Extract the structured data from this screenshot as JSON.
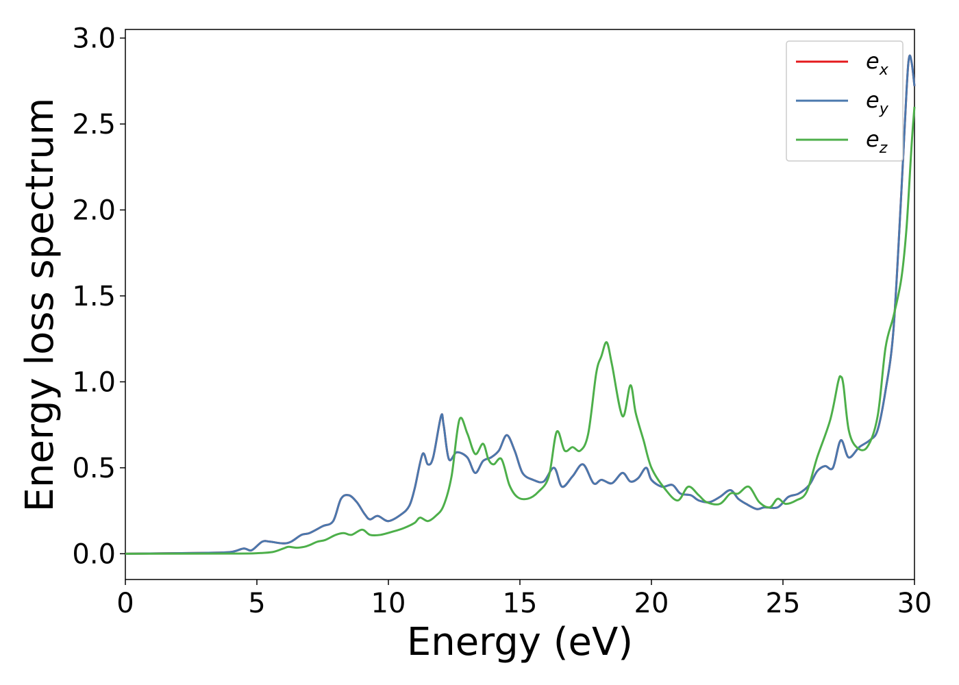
{
  "chart_data": {
    "type": "line",
    "xlabel": "Energy (eV)",
    "ylabel": "Energy loss spectrum",
    "xlim": [
      0,
      30
    ],
    "ylim": [
      -0.15,
      3.05
    ],
    "xticks": [
      0,
      5,
      10,
      15,
      20,
      25,
      30
    ],
    "yticks": [
      0.0,
      0.5,
      1.0,
      1.5,
      2.0,
      2.5,
      3.0
    ],
    "xtick_labels": [
      "0",
      "5",
      "10",
      "15",
      "20",
      "25",
      "30"
    ],
    "ytick_labels": [
      "0.0",
      "0.5",
      "1.0",
      "1.5",
      "2.0",
      "2.5",
      "3.0"
    ],
    "grid": false,
    "legend_position": "top-right",
    "series": [
      {
        "name": "e",
        "subscript": "x",
        "color": "#e41a1c",
        "x": [
          0,
          3,
          4,
          4.5,
          4.8,
          5.2,
          5.5,
          6.0,
          6.3,
          6.7,
          7.0,
          7.5,
          7.9,
          8.2,
          8.5,
          8.8,
          9.1,
          9.3,
          9.6,
          10.0,
          10.5,
          10.8,
          11.0,
          11.3,
          11.5,
          11.7,
          12.0,
          12.1,
          12.3,
          12.6,
          13.0,
          13.3,
          13.6,
          13.9,
          14.2,
          14.5,
          14.8,
          15.1,
          15.5,
          15.9,
          16.3,
          16.6,
          17.0,
          17.4,
          17.8,
          18.1,
          18.5,
          18.9,
          19.2,
          19.5,
          19.8,
          20.0,
          20.4,
          20.8,
          21.1,
          21.5,
          21.8,
          22.2,
          22.6,
          23.0,
          23.3,
          23.6,
          24.0,
          24.3,
          24.8,
          25.2,
          25.6,
          26.0,
          26.3,
          26.6,
          26.9,
          27.2,
          27.5,
          27.9,
          28.3,
          28.6,
          28.9,
          29.2,
          29.5,
          29.7,
          29.8,
          29.9,
          30.0
        ],
        "y": [
          0,
          0.005,
          0.01,
          0.03,
          0.02,
          0.07,
          0.07,
          0.06,
          0.07,
          0.11,
          0.12,
          0.16,
          0.19,
          0.32,
          0.34,
          0.3,
          0.23,
          0.2,
          0.22,
          0.19,
          0.23,
          0.28,
          0.38,
          0.58,
          0.52,
          0.56,
          0.8,
          0.75,
          0.55,
          0.59,
          0.56,
          0.47,
          0.54,
          0.56,
          0.6,
          0.69,
          0.6,
          0.47,
          0.43,
          0.42,
          0.5,
          0.39,
          0.45,
          0.52,
          0.41,
          0.43,
          0.41,
          0.47,
          0.42,
          0.44,
          0.5,
          0.43,
          0.39,
          0.4,
          0.35,
          0.34,
          0.31,
          0.3,
          0.33,
          0.37,
          0.32,
          0.29,
          0.26,
          0.27,
          0.27,
          0.33,
          0.35,
          0.4,
          0.48,
          0.51,
          0.5,
          0.66,
          0.56,
          0.62,
          0.66,
          0.72,
          0.95,
          1.3,
          2.1,
          2.7,
          2.89,
          2.85,
          2.72
        ]
      },
      {
        "name": "e",
        "subscript": "y",
        "color": "#4a78ad",
        "x": [
          0,
          3,
          4,
          4.5,
          4.8,
          5.2,
          5.5,
          6.0,
          6.3,
          6.7,
          7.0,
          7.5,
          7.9,
          8.2,
          8.5,
          8.8,
          9.1,
          9.3,
          9.6,
          10.0,
          10.5,
          10.8,
          11.0,
          11.3,
          11.5,
          11.7,
          12.0,
          12.1,
          12.3,
          12.6,
          13.0,
          13.3,
          13.6,
          13.9,
          14.2,
          14.5,
          14.8,
          15.1,
          15.5,
          15.9,
          16.3,
          16.6,
          17.0,
          17.4,
          17.8,
          18.1,
          18.5,
          18.9,
          19.2,
          19.5,
          19.8,
          20.0,
          20.4,
          20.8,
          21.1,
          21.5,
          21.8,
          22.2,
          22.6,
          23.0,
          23.3,
          23.6,
          24.0,
          24.3,
          24.8,
          25.2,
          25.6,
          26.0,
          26.3,
          26.6,
          26.9,
          27.2,
          27.5,
          27.9,
          28.3,
          28.6,
          28.9,
          29.2,
          29.5,
          29.7,
          29.8,
          29.9,
          30.0
        ],
        "y": [
          0,
          0.005,
          0.01,
          0.03,
          0.02,
          0.07,
          0.07,
          0.06,
          0.07,
          0.11,
          0.12,
          0.16,
          0.19,
          0.32,
          0.34,
          0.3,
          0.23,
          0.2,
          0.22,
          0.19,
          0.23,
          0.28,
          0.38,
          0.58,
          0.52,
          0.56,
          0.8,
          0.75,
          0.55,
          0.59,
          0.56,
          0.47,
          0.54,
          0.56,
          0.6,
          0.69,
          0.6,
          0.47,
          0.43,
          0.42,
          0.5,
          0.39,
          0.45,
          0.52,
          0.41,
          0.43,
          0.41,
          0.47,
          0.42,
          0.44,
          0.5,
          0.43,
          0.39,
          0.4,
          0.35,
          0.34,
          0.31,
          0.3,
          0.33,
          0.37,
          0.32,
          0.29,
          0.26,
          0.27,
          0.27,
          0.33,
          0.35,
          0.4,
          0.48,
          0.51,
          0.5,
          0.66,
          0.56,
          0.62,
          0.66,
          0.72,
          0.95,
          1.3,
          2.1,
          2.7,
          2.89,
          2.85,
          2.72
        ]
      },
      {
        "name": "e",
        "subscript": "z",
        "color": "#4daf4a",
        "x": [
          0,
          4,
          5,
          5.6,
          6.0,
          6.2,
          6.5,
          6.8,
          7.0,
          7.3,
          7.6,
          8.0,
          8.3,
          8.6,
          9.0,
          9.3,
          9.7,
          10.2,
          10.6,
          11.0,
          11.2,
          11.5,
          11.8,
          12.1,
          12.4,
          12.7,
          13.0,
          13.3,
          13.6,
          13.8,
          14.0,
          14.3,
          14.6,
          14.9,
          15.3,
          15.7,
          16.1,
          16.4,
          16.7,
          17.0,
          17.3,
          17.6,
          17.9,
          18.1,
          18.3,
          18.5,
          18.9,
          19.2,
          19.4,
          19.7,
          20.0,
          20.5,
          21.0,
          21.4,
          21.8,
          22.1,
          22.6,
          23.0,
          23.3,
          23.7,
          24.1,
          24.5,
          24.8,
          25.1,
          25.5,
          25.9,
          26.3,
          26.8,
          27.1,
          27.2,
          27.3,
          27.5,
          27.8,
          28.2,
          28.6,
          28.9,
          29.2,
          29.5,
          29.7,
          29.9,
          30.0
        ],
        "y": [
          0,
          0.001,
          0.003,
          0.01,
          0.03,
          0.04,
          0.035,
          0.04,
          0.05,
          0.07,
          0.08,
          0.11,
          0.12,
          0.11,
          0.14,
          0.11,
          0.11,
          0.13,
          0.15,
          0.18,
          0.21,
          0.19,
          0.22,
          0.28,
          0.45,
          0.78,
          0.7,
          0.58,
          0.64,
          0.55,
          0.52,
          0.55,
          0.4,
          0.33,
          0.32,
          0.36,
          0.45,
          0.71,
          0.6,
          0.62,
          0.6,
          0.7,
          1.05,
          1.15,
          1.23,
          1.1,
          0.8,
          0.98,
          0.82,
          0.66,
          0.5,
          0.38,
          0.31,
          0.39,
          0.34,
          0.3,
          0.29,
          0.35,
          0.35,
          0.39,
          0.3,
          0.27,
          0.32,
          0.29,
          0.31,
          0.36,
          0.56,
          0.78,
          1.0,
          1.03,
          0.98,
          0.72,
          0.62,
          0.62,
          0.8,
          1.2,
          1.38,
          1.6,
          1.9,
          2.4,
          2.6
        ]
      }
    ]
  }
}
